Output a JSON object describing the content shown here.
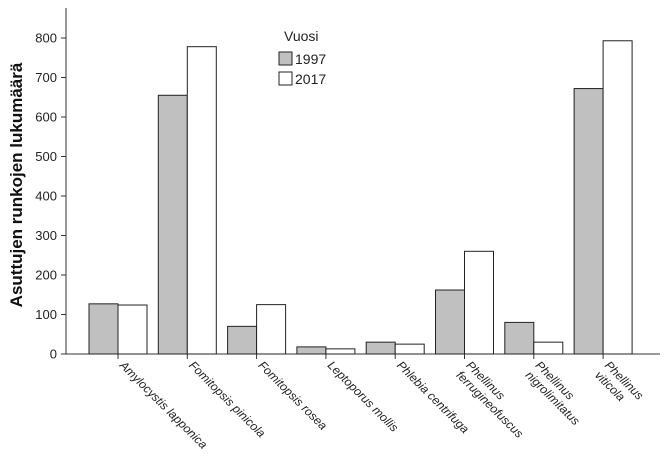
{
  "chart_data": {
    "type": "bar",
    "ylabel": "Asuttujen runkojen lukumäärä",
    "xlabel": "",
    "ylim": [
      0,
      850
    ],
    "yticks": [
      0,
      100,
      200,
      300,
      400,
      500,
      600,
      700,
      800
    ],
    "grid": false,
    "legend": {
      "title": "Vuosi",
      "position": "top-center"
    },
    "categories": [
      [
        "Amylocystis lapponica"
      ],
      [
        "Fomitopsis pinicola"
      ],
      [
        "Fomitopsis rosea"
      ],
      [
        "Leptoporus mollis"
      ],
      [
        "Phlebia centrifuga"
      ],
      [
        "Phellinus",
        "ferrugineofuscus"
      ],
      [
        "Phellinus",
        "nigrolimitatus"
      ],
      [
        "Phellinus",
        "viticola"
      ]
    ],
    "series": [
      {
        "name": "1997",
        "color": "#c0c0c0",
        "values": [
          127,
          655,
          70,
          18,
          30,
          162,
          80,
          672
        ]
      },
      {
        "name": "2017",
        "color": "#ffffff",
        "values": [
          124,
          778,
          125,
          13,
          25,
          260,
          30,
          793
        ]
      }
    ]
  }
}
